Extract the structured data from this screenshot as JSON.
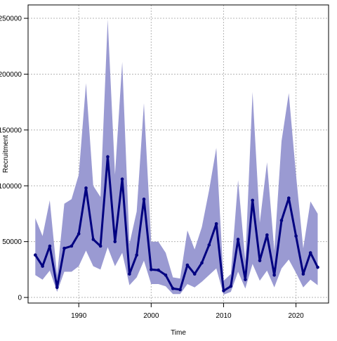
{
  "chart_data": {
    "type": "line",
    "xlabel": "Time",
    "ylabel": "Recruitment",
    "xlim": [
      1983,
      2024.5
    ],
    "ylim": [
      -5000,
      262000
    ],
    "x_ticks": [
      1990,
      2000,
      2010,
      2020
    ],
    "y_ticks": [
      0,
      50000,
      100000,
      150000,
      200000,
      250000
    ],
    "grid": true,
    "colors": {
      "line": "#000080",
      "band": "#9a9ad2",
      "grid": "#b5b5b5"
    },
    "series": [
      {
        "x": [
          1984,
          1985,
          1986,
          1987,
          1988,
          1989,
          1990,
          1991,
          1992,
          1993,
          1994,
          1995,
          1996,
          1997,
          1998,
          1999,
          2000,
          2001,
          2002,
          2003,
          2004,
          2005,
          2006,
          2007,
          2008,
          2009,
          2010,
          2011,
          2012,
          2013,
          2014,
          2015,
          2016,
          2017,
          2018,
          2019,
          2020,
          2021,
          2022,
          2023
        ],
        "values": [
          38000,
          28000,
          46000,
          9000,
          44000,
          46000,
          57000,
          98000,
          52000,
          46000,
          126000,
          50000,
          106000,
          21000,
          38000,
          88000,
          25000,
          24500,
          20000,
          8000,
          7000,
          29000,
          21000,
          31000,
          47000,
          66000,
          6000,
          10000,
          52000,
          16000,
          87000,
          33000,
          56000,
          20000,
          69000,
          89000,
          55000,
          21000,
          40000,
          27000
        ],
        "lower": [
          20000,
          16000,
          24000,
          5000,
          23000,
          23000,
          28000,
          42000,
          28000,
          25000,
          45000,
          28000,
          40000,
          11000,
          18000,
          33000,
          12000,
          12000,
          10000,
          3000,
          3000,
          12000,
          9000,
          14000,
          20000,
          26000,
          2500,
          5000,
          23000,
          8000,
          30000,
          15000,
          24000,
          9000,
          26000,
          34000,
          22000,
          9000,
          16000,
          11000
        ],
        "upper": [
          71000,
          55000,
          87000,
          20000,
          84000,
          88000,
          110000,
          192000,
          100000,
          90000,
          249000,
          110000,
          211000,
          48000,
          77000,
          174000,
          50000,
          50000,
          40000,
          18000,
          17000,
          60000,
          43000,
          63000,
          96000,
          134000,
          15000,
          21000,
          105000,
          33000,
          184000,
          67000,
          121000,
          42000,
          140000,
          183000,
          110000,
          44000,
          86000,
          75000
        ]
      }
    ]
  }
}
